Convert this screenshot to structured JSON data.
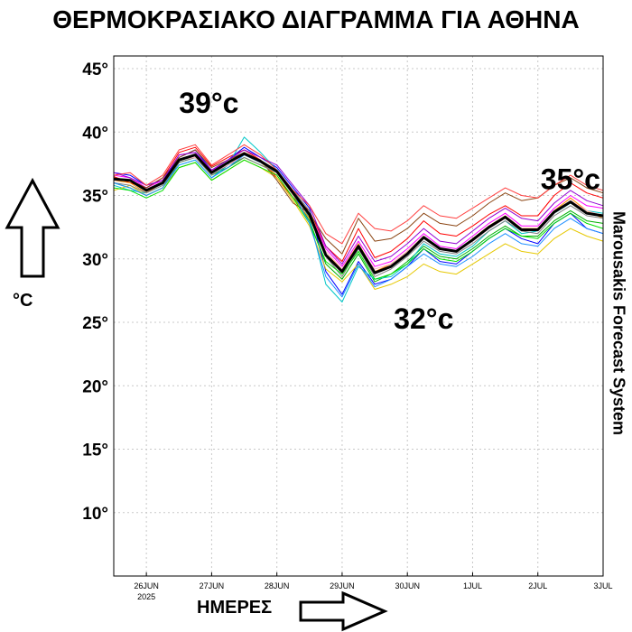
{
  "page": {
    "title": "ΘΕΡΜΟΚΡΑΣΙΑΚΟ ΔΙΑΓΡΑΜΜΑ ΓΙΑ ΑΘΗΝΑ"
  },
  "labels": {
    "ylabel": "°C",
    "xlabel": "ΗΜΕΡΕΣ",
    "side_credit": "Marousakis Forecast System"
  },
  "chart_data": {
    "type": "line",
    "title": "ΘΕΡΜΟΚΡΑΣΙΑΚΟ ΔΙΑΓΡΑΜΜΑ ΓΙΑ ΑΘΗΝΑ",
    "xlabel": "ΗΜΕΡΕΣ",
    "ylabel": "°C",
    "ylim": [
      5,
      46
    ],
    "xlim": [
      "2025-06-25T12:00",
      "2025-07-03T00:00"
    ],
    "grid": true,
    "yticks": [
      {
        "value": 45,
        "label": "45°"
      },
      {
        "value": 40,
        "label": "40°"
      },
      {
        "value": 35,
        "label": "35°"
      },
      {
        "value": 30,
        "label": "30°"
      },
      {
        "value": 25,
        "label": "25°"
      },
      {
        "value": 20,
        "label": "20°"
      },
      {
        "value": 15,
        "label": "15°"
      },
      {
        "value": 10,
        "label": "10°"
      }
    ],
    "xticks": [
      {
        "value": "2025-06-26T00:00",
        "label": "26JUN",
        "sublabel": "2025"
      },
      {
        "value": "2025-06-27T00:00",
        "label": "27JUN"
      },
      {
        "value": "2025-06-28T00:00",
        "label": "28JUN"
      },
      {
        "value": "2025-06-29T00:00",
        "label": "29JUN"
      },
      {
        "value": "2025-06-30T00:00",
        "label": "30JUN"
      },
      {
        "value": "2025-07-01T00:00",
        "label": "1JUL"
      },
      {
        "value": "2025-07-02T00:00",
        "label": "2JUL"
      },
      {
        "value": "2025-07-03T00:00",
        "label": "3JUL"
      }
    ],
    "annotations": [
      {
        "text": "39°c",
        "x": "2025-06-26T23:00",
        "y": 41.5
      },
      {
        "text": "32°c",
        "x": "2025-06-30T06:00",
        "y": 24.5
      },
      {
        "text": "35°c",
        "x": "2025-07-02T12:00",
        "y": 35.5
      }
    ],
    "x": [
      "2025-06-25T12:00",
      "2025-06-25T18:00",
      "2025-06-26T00:00",
      "2025-06-26T06:00",
      "2025-06-26T12:00",
      "2025-06-26T18:00",
      "2025-06-27T00:00",
      "2025-06-27T06:00",
      "2025-06-27T12:00",
      "2025-06-27T18:00",
      "2025-06-28T00:00",
      "2025-06-28T06:00",
      "2025-06-28T12:00",
      "2025-06-28T18:00",
      "2025-06-29T00:00",
      "2025-06-29T06:00",
      "2025-06-29T12:00",
      "2025-06-29T18:00",
      "2025-06-30T00:00",
      "2025-06-30T06:00",
      "2025-06-30T12:00",
      "2025-06-30T18:00",
      "2025-07-01T00:00",
      "2025-07-01T06:00",
      "2025-07-01T12:00",
      "2025-07-01T18:00",
      "2025-07-02T00:00",
      "2025-07-02T06:00",
      "2025-07-02T12:00",
      "2025-07-02T18:00",
      "2025-07-03T00:00"
    ],
    "mean_series": {
      "color": "#000000",
      "values": [
        36.3,
        36.2,
        35.4,
        36.0,
        37.8,
        38.2,
        36.8,
        37.6,
        38.3,
        37.7,
        36.9,
        35.2,
        33.5,
        30.3,
        29.0,
        31.0,
        28.9,
        29.4,
        30.4,
        31.7,
        30.8,
        30.6,
        31.5,
        32.5,
        33.3,
        32.3,
        32.3,
        33.7,
        34.5,
        33.6,
        33.4
      ]
    },
    "series": [
      {
        "color": "#ff0000",
        "values": [
          36.5,
          36.0,
          35.6,
          36.4,
          38.4,
          38.8,
          37.3,
          38.0,
          38.6,
          37.8,
          36.4,
          34.8,
          33.8,
          31.0,
          29.8,
          32.4,
          30.1,
          30.6,
          31.6,
          33.0,
          32.0,
          31.8,
          32.6,
          33.5,
          34.2,
          33.4,
          33.4,
          35.0,
          36.0,
          35.2,
          34.8
        ]
      },
      {
        "color": "#00b000",
        "values": [
          36.0,
          35.6,
          35.0,
          35.6,
          37.6,
          38.0,
          36.6,
          37.2,
          38.0,
          37.4,
          36.8,
          35.0,
          33.0,
          29.6,
          28.4,
          30.4,
          28.2,
          28.8,
          29.8,
          31.0,
          30.2,
          30.0,
          30.8,
          31.8,
          32.6,
          31.8,
          31.8,
          33.0,
          33.8,
          33.0,
          32.8
        ]
      },
      {
        "color": "#0000ff",
        "values": [
          36.8,
          36.6,
          35.8,
          36.2,
          38.0,
          38.6,
          37.0,
          37.8,
          38.8,
          38.0,
          37.2,
          35.6,
          34.0,
          29.0,
          27.2,
          29.8,
          28.0,
          28.4,
          29.4,
          30.8,
          29.8,
          29.6,
          30.6,
          31.6,
          32.4,
          31.6,
          31.2,
          32.8,
          33.6,
          32.4,
          32.0
        ]
      },
      {
        "color": "#00c8c8",
        "values": [
          35.8,
          35.4,
          35.2,
          35.8,
          37.4,
          37.8,
          36.4,
          37.4,
          39.6,
          38.4,
          37.0,
          35.4,
          33.2,
          28.0,
          26.6,
          29.4,
          28.4,
          28.6,
          29.6,
          31.2,
          30.4,
          30.2,
          31.0,
          32.2,
          33.0,
          32.0,
          32.2,
          33.6,
          34.4,
          33.8,
          33.6
        ]
      },
      {
        "color": "#ff00ff",
        "values": [
          36.6,
          36.4,
          35.6,
          36.2,
          38.2,
          38.4,
          37.0,
          37.6,
          38.4,
          37.6,
          36.8,
          35.2,
          33.6,
          30.8,
          29.4,
          31.4,
          29.4,
          29.8,
          30.8,
          32.0,
          31.0,
          30.8,
          31.8,
          32.8,
          33.6,
          32.6,
          32.6,
          34.0,
          35.0,
          34.2,
          34.0
        ]
      },
      {
        "color": "#e6c800",
        "values": [
          35.4,
          35.8,
          35.0,
          35.6,
          37.2,
          37.6,
          36.2,
          37.0,
          37.8,
          37.2,
          36.4,
          34.6,
          32.6,
          29.2,
          28.2,
          29.6,
          27.6,
          28.0,
          28.6,
          29.6,
          29.0,
          28.8,
          29.6,
          30.4,
          31.2,
          30.6,
          30.4,
          31.6,
          32.4,
          31.8,
          31.4
        ]
      },
      {
        "color": "#ff8c00",
        "values": [
          36.2,
          36.0,
          35.2,
          36.0,
          37.8,
          38.2,
          36.8,
          37.6,
          38.2,
          37.6,
          36.6,
          34.8,
          33.2,
          30.4,
          29.2,
          31.2,
          29.0,
          29.6,
          30.6,
          31.8,
          30.8,
          30.6,
          31.6,
          32.6,
          33.4,
          32.4,
          32.4,
          33.8,
          34.8,
          33.8,
          33.2
        ]
      },
      {
        "color": "#8b4513",
        "values": [
          36.4,
          36.2,
          35.6,
          36.4,
          38.0,
          38.6,
          37.2,
          37.8,
          38.4,
          37.8,
          36.2,
          34.4,
          33.6,
          31.6,
          30.4,
          33.2,
          31.4,
          31.6,
          32.4,
          33.6,
          32.8,
          32.6,
          33.4,
          34.4,
          35.2,
          34.6,
          34.8,
          35.8,
          36.4,
          35.6,
          35.2
        ]
      },
      {
        "color": "#808080",
        "values": [
          36.0,
          35.8,
          35.2,
          35.8,
          37.6,
          38.0,
          36.6,
          37.4,
          38.0,
          37.4,
          36.8,
          35.4,
          33.8,
          30.2,
          28.6,
          30.8,
          28.6,
          29.2,
          30.2,
          31.4,
          30.6,
          30.4,
          31.2,
          32.2,
          33.0,
          32.2,
          32.0,
          33.4,
          34.2,
          33.4,
          33.2
        ]
      },
      {
        "color": "#9400d3",
        "values": [
          36.8,
          36.4,
          35.8,
          36.2,
          38.2,
          38.4,
          37.0,
          37.8,
          38.6,
          38.0,
          37.4,
          35.8,
          34.2,
          31.0,
          29.6,
          31.8,
          29.8,
          30.2,
          31.2,
          32.4,
          31.4,
          31.2,
          32.2,
          33.2,
          34.0,
          33.2,
          33.0,
          34.4,
          35.4,
          34.6,
          34.2
        ]
      },
      {
        "color": "#00e000",
        "values": [
          35.6,
          35.4,
          34.8,
          35.4,
          37.2,
          37.6,
          36.2,
          37.0,
          37.8,
          37.2,
          36.6,
          34.8,
          32.8,
          29.8,
          28.8,
          30.6,
          28.4,
          28.8,
          29.6,
          30.8,
          30.0,
          29.8,
          30.6,
          31.6,
          32.4,
          31.8,
          31.6,
          32.8,
          33.6,
          32.8,
          32.4
        ]
      },
      {
        "color": "#ffb6c1",
        "values": [
          36.2,
          36.2,
          35.4,
          36.0,
          37.8,
          38.0,
          36.8,
          37.4,
          38.2,
          37.6,
          36.8,
          35.0,
          33.4,
          30.6,
          29.2,
          31.0,
          29.2,
          29.6,
          30.6,
          31.8,
          30.8,
          30.6,
          31.4,
          32.4,
          33.2,
          32.4,
          32.2,
          33.6,
          34.6,
          33.8,
          33.4
        ]
      },
      {
        "color": "#ff4040",
        "values": [
          36.6,
          36.8,
          35.8,
          36.6,
          38.6,
          39.0,
          37.4,
          38.2,
          39.0,
          38.2,
          37.0,
          35.4,
          34.2,
          32.0,
          31.2,
          33.6,
          32.4,
          32.2,
          33.0,
          34.2,
          33.4,
          33.2,
          34.0,
          34.8,
          35.6,
          35.0,
          34.8,
          35.8,
          36.6,
          35.8,
          35.4
        ]
      },
      {
        "color": "#1e90ff",
        "values": [
          36.0,
          35.6,
          35.0,
          35.6,
          37.4,
          37.8,
          36.4,
          37.2,
          38.2,
          37.6,
          36.8,
          35.2,
          32.8,
          28.6,
          27.0,
          29.6,
          27.8,
          28.4,
          29.4,
          30.4,
          29.6,
          29.4,
          30.2,
          31.2,
          32.0,
          31.2,
          31.0,
          32.4,
          33.2,
          32.4,
          32.0
        ]
      }
    ]
  }
}
